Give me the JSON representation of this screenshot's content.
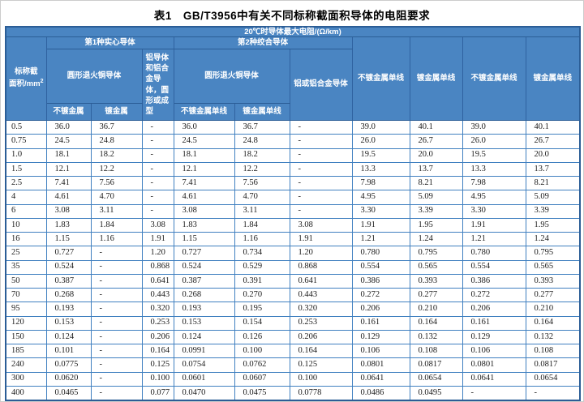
{
  "page": {
    "title": "表1　GB/T3956中有关不同标称截面积导体的电阻要求"
  },
  "colors": {
    "header_blue": "#4a85c2",
    "header_border": "#2f62a0",
    "outer_border": "#2b5d96",
    "grid_border": "#4080c0",
    "header_text": "#ffffff",
    "body_text": "#1c1c1c"
  },
  "table": {
    "unit_header": "20℃时导体最大电阻/(Ω/km)",
    "area_header": {
      "line1": "标称截",
      "line2": "面积/mm",
      "sup": "2"
    },
    "groups": {
      "type1": "第1种实心导体",
      "type2": "第2种绞合导体"
    },
    "type1_sub": {
      "copper": "圆形退火铜导体",
      "aluminum": "铝导体和铝合金导体，圆形或成型",
      "copper_unplated": "不镀金属",
      "copper_plated": "镀金属"
    },
    "type2_sub": {
      "copper": "圆形退火铜导体",
      "aluminum": "铝或铝合金导体",
      "copper_unplated": "不镀金属单线",
      "copper_plated": "镀金属单线"
    },
    "right_columns": [
      "不镀金属单线",
      "镀金属单线",
      "不镀金属单线",
      "镀金属单线"
    ],
    "rows": [
      [
        "0.5",
        "36.0",
        "36.7",
        "-",
        "36.0",
        "36.7",
        "-",
        "39.0",
        "40.1",
        "39.0",
        "40.1"
      ],
      [
        "0.75",
        "24.5",
        "24.8",
        "-",
        "24.5",
        "24.8",
        "-",
        "26.0",
        "26.7",
        "26.0",
        "26.7"
      ],
      [
        "1.0",
        "18.1",
        "18.2",
        "-",
        "18.1",
        "18.2",
        "-",
        "19.5",
        "20.0",
        "19.5",
        "20.0"
      ],
      [
        "1.5",
        "12.1",
        "12.2",
        "-",
        "12.1",
        "12.2",
        "-",
        "13.3",
        "13.7",
        "13.3",
        "13.7"
      ],
      [
        "2.5",
        "7.41",
        "7.56",
        "-",
        "7.41",
        "7.56",
        "-",
        "7.98",
        "8.21",
        "7.98",
        "8.21"
      ],
      [
        "4",
        "4.61",
        "4.70",
        "-",
        "4.61",
        "4.70",
        "-",
        "4.95",
        "5.09",
        "4.95",
        "5.09"
      ],
      [
        "6",
        "3.08",
        "3.11",
        "-",
        "3.08",
        "3.11",
        "-",
        "3.30",
        "3.39",
        "3.30",
        "3.39"
      ],
      [
        "10",
        "1.83",
        "1.84",
        "3.08",
        "1.83",
        "1.84",
        "3.08",
        "1.91",
        "1.95",
        "1.91",
        "1.95"
      ],
      [
        "16",
        "1.15",
        "1.16",
        "1.91",
        "1.15",
        "1.16",
        "1.91",
        "1.21",
        "1.24",
        "1.21",
        "1.24"
      ],
      [
        "25",
        "0.727",
        "-",
        "1.20",
        "0.727",
        "0.734",
        "1.20",
        "0.780",
        "0.795",
        "0.780",
        "0.795"
      ],
      [
        "35",
        "0.524",
        "-",
        "0.868",
        "0.524",
        "0.529",
        "0.868",
        "0.554",
        "0.565",
        "0.554",
        "0.565"
      ],
      [
        "50",
        "0.387",
        "-",
        "0.641",
        "0.387",
        "0.391",
        "0.641",
        "0.386",
        "0.393",
        "0.386",
        "0.393"
      ],
      [
        "70",
        "0.268",
        "-",
        "0.443",
        "0.268",
        "0.270",
        "0.443",
        "0.272",
        "0.277",
        "0.272",
        "0.277"
      ],
      [
        "95",
        "0.193",
        "-",
        "0.320",
        "0.193",
        "0.195",
        "0.320",
        "0.206",
        "0.210",
        "0.206",
        "0.210"
      ],
      [
        "120",
        "0.153",
        "-",
        "0.253",
        "0.153",
        "0.154",
        "0.253",
        "0.161",
        "0.164",
        "0.161",
        "0.164"
      ],
      [
        "150",
        "0.124",
        "-",
        "0.206",
        "0.124",
        "0.126",
        "0.206",
        "0.129",
        "0.132",
        "0.129",
        "0.132"
      ],
      [
        "185",
        "0.101",
        "-",
        "0.164",
        "0.0991",
        "0.100",
        "0.164",
        "0.106",
        "0.108",
        "0.106",
        "0.108"
      ],
      [
        "240",
        "0.0775",
        "-",
        "0.125",
        "0.0754",
        "0.0762",
        "0.125",
        "0.0801",
        "0.0817",
        "0.0801",
        "0.0817"
      ],
      [
        "300",
        "0.0620",
        "-",
        "0.100",
        "0.0601",
        "0.0607",
        "0.100",
        "0.0641",
        "0.0654",
        "0.0641",
        "0.0654"
      ],
      [
        "400",
        "0.0465",
        "-",
        "0.077",
        "0.0470",
        "0.0475",
        "0.0778",
        "0.0486",
        "0.0495",
        "-",
        "-"
      ]
    ]
  }
}
